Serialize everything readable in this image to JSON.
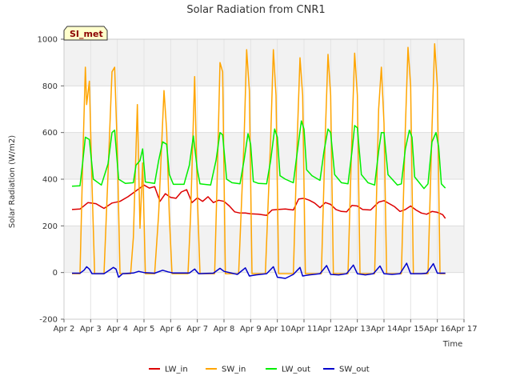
{
  "chart_data": {
    "type": "line",
    "title": "Solar Radiation from CNR1",
    "xlabel": "Time",
    "ylabel": "Solar Radiation (W/m2)",
    "xlim": [
      2,
      17
    ],
    "ylim": [
      -200,
      1000
    ],
    "xticks": [
      {
        "v": 2,
        "label": "Apr 2"
      },
      {
        "v": 3,
        "label": "Apr 3"
      },
      {
        "v": 4,
        "label": "Apr 4"
      },
      {
        "v": 5,
        "label": "Apr 5"
      },
      {
        "v": 6,
        "label": "Apr 6"
      },
      {
        "v": 7,
        "label": "Apr 7"
      },
      {
        "v": 8,
        "label": "Apr 8"
      },
      {
        "v": 9,
        "label": "Apr 9"
      },
      {
        "v": 10,
        "label": "Apr 10"
      },
      {
        "v": 11,
        "label": "Apr 11"
      },
      {
        "v": 12,
        "label": "Apr 12"
      },
      {
        "v": 13,
        "label": "Apr 13"
      },
      {
        "v": 14,
        "label": "Apr 14"
      },
      {
        "v": 15,
        "label": "Apr 15"
      },
      {
        "v": 16,
        "label": "Apr 16"
      },
      {
        "v": 17,
        "label": "Apr 17"
      }
    ],
    "yticks": [
      {
        "v": -200,
        "label": "-200"
      },
      {
        "v": 0,
        "label": "0"
      },
      {
        "v": 200,
        "label": "200"
      },
      {
        "v": 400,
        "label": "400"
      },
      {
        "v": 600,
        "label": "600"
      },
      {
        "v": 800,
        "label": "800"
      },
      {
        "v": 1000,
        "label": "1000"
      }
    ],
    "x_unit": "day of April",
    "badge": "SI_met",
    "grid": true,
    "legend_position": "bottom",
    "series": [
      {
        "name": "LW_in",
        "color": "#dd0000",
        "points": [
          [
            2.3,
            270
          ],
          [
            2.6,
            272
          ],
          [
            2.9,
            300
          ],
          [
            3.2,
            295
          ],
          [
            3.5,
            275
          ],
          [
            3.8,
            298
          ],
          [
            4.1,
            305
          ],
          [
            4.4,
            325
          ],
          [
            4.7,
            350
          ],
          [
            5.0,
            375
          ],
          [
            5.2,
            362
          ],
          [
            5.4,
            368
          ],
          [
            5.6,
            305
          ],
          [
            5.8,
            338
          ],
          [
            6.0,
            322
          ],
          [
            6.2,
            318
          ],
          [
            6.4,
            345
          ],
          [
            6.6,
            355
          ],
          [
            6.8,
            300
          ],
          [
            7.0,
            320
          ],
          [
            7.2,
            305
          ],
          [
            7.4,
            325
          ],
          [
            7.6,
            300
          ],
          [
            7.8,
            310
          ],
          [
            8.0,
            305
          ],
          [
            8.2,
            285
          ],
          [
            8.4,
            260
          ],
          [
            8.6,
            255
          ],
          [
            8.8,
            255
          ],
          [
            9.0,
            252
          ],
          [
            9.3,
            250
          ],
          [
            9.6,
            245
          ],
          [
            9.8,
            268
          ],
          [
            10.0,
            270
          ],
          [
            10.3,
            272
          ],
          [
            10.6,
            268
          ],
          [
            10.8,
            315
          ],
          [
            11.0,
            318
          ],
          [
            11.2,
            310
          ],
          [
            11.4,
            298
          ],
          [
            11.6,
            278
          ],
          [
            11.8,
            300
          ],
          [
            12.0,
            292
          ],
          [
            12.2,
            270
          ],
          [
            12.4,
            262
          ],
          [
            12.6,
            260
          ],
          [
            12.8,
            288
          ],
          [
            13.0,
            285
          ],
          [
            13.2,
            270
          ],
          [
            13.5,
            268
          ],
          [
            13.8,
            302
          ],
          [
            14.0,
            308
          ],
          [
            14.2,
            295
          ],
          [
            14.4,
            282
          ],
          [
            14.6,
            262
          ],
          [
            14.8,
            270
          ],
          [
            15.0,
            285
          ],
          [
            15.2,
            268
          ],
          [
            15.4,
            255
          ],
          [
            15.6,
            250
          ],
          [
            15.8,
            262
          ],
          [
            16.0,
            258
          ],
          [
            16.2,
            248
          ],
          [
            16.3,
            232
          ]
        ]
      },
      {
        "name": "SW_in",
        "color": "#ffa500",
        "points": [
          [
            2.3,
            -5
          ],
          [
            2.6,
            -5
          ],
          [
            2.7,
            460
          ],
          [
            2.8,
            880
          ],
          [
            2.85,
            720
          ],
          [
            2.95,
            820
          ],
          [
            3.05,
            380
          ],
          [
            3.15,
            -5
          ],
          [
            3.5,
            -5
          ],
          [
            3.65,
            420
          ],
          [
            3.8,
            860
          ],
          [
            3.9,
            880
          ],
          [
            4.0,
            520
          ],
          [
            4.1,
            -5
          ],
          [
            4.5,
            -5
          ],
          [
            4.6,
            150
          ],
          [
            4.75,
            720
          ],
          [
            4.85,
            190
          ],
          [
            4.95,
            470
          ],
          [
            5.05,
            -5
          ],
          [
            5.4,
            -5
          ],
          [
            5.55,
            250
          ],
          [
            5.75,
            780
          ],
          [
            5.85,
            610
          ],
          [
            5.95,
            240
          ],
          [
            6.05,
            -5
          ],
          [
            6.65,
            -5
          ],
          [
            6.75,
            250
          ],
          [
            6.9,
            840
          ],
          [
            7.0,
            330
          ],
          [
            7.1,
            -5
          ],
          [
            7.65,
            -5
          ],
          [
            7.75,
            430
          ],
          [
            7.85,
            900
          ],
          [
            7.95,
            860
          ],
          [
            8.05,
            -5
          ],
          [
            8.55,
            -5
          ],
          [
            8.75,
            560
          ],
          [
            8.85,
            955
          ],
          [
            8.95,
            780
          ],
          [
            9.05,
            -5
          ],
          [
            9.55,
            -5
          ],
          [
            9.75,
            570
          ],
          [
            9.85,
            955
          ],
          [
            9.95,
            760
          ],
          [
            10.05,
            -5
          ],
          [
            10.6,
            -5
          ],
          [
            10.75,
            590
          ],
          [
            10.85,
            920
          ],
          [
            10.95,
            760
          ],
          [
            11.05,
            -5
          ],
          [
            11.65,
            -5
          ],
          [
            11.8,
            600
          ],
          [
            11.9,
            935
          ],
          [
            12.0,
            760
          ],
          [
            12.1,
            -5
          ],
          [
            12.65,
            -5
          ],
          [
            12.8,
            600
          ],
          [
            12.9,
            940
          ],
          [
            13.0,
            760
          ],
          [
            13.1,
            -5
          ],
          [
            13.65,
            -5
          ],
          [
            13.8,
            700
          ],
          [
            13.9,
            880
          ],
          [
            14.0,
            640
          ],
          [
            14.1,
            -5
          ],
          [
            14.65,
            -5
          ],
          [
            14.8,
            620
          ],
          [
            14.9,
            965
          ],
          [
            15.0,
            800
          ],
          [
            15.1,
            -5
          ],
          [
            15.65,
            -5
          ],
          [
            15.8,
            620
          ],
          [
            15.9,
            980
          ],
          [
            16.0,
            800
          ],
          [
            16.1,
            -5
          ],
          [
            16.3,
            -5
          ]
        ]
      },
      {
        "name": "LW_out",
        "color": "#00ee00",
        "points": [
          [
            2.3,
            370
          ],
          [
            2.6,
            372
          ],
          [
            2.7,
            470
          ],
          [
            2.8,
            580
          ],
          [
            2.95,
            570
          ],
          [
            3.1,
            400
          ],
          [
            3.4,
            375
          ],
          [
            3.65,
            465
          ],
          [
            3.8,
            600
          ],
          [
            3.9,
            610
          ],
          [
            4.05,
            400
          ],
          [
            4.3,
            382
          ],
          [
            4.6,
            385
          ],
          [
            4.7,
            460
          ],
          [
            4.85,
            480
          ],
          [
            4.95,
            530
          ],
          [
            5.05,
            388
          ],
          [
            5.4,
            382
          ],
          [
            5.55,
            480
          ],
          [
            5.7,
            560
          ],
          [
            5.85,
            550
          ],
          [
            5.95,
            420
          ],
          [
            6.1,
            378
          ],
          [
            6.5,
            378
          ],
          [
            6.7,
            460
          ],
          [
            6.85,
            585
          ],
          [
            7.0,
            440
          ],
          [
            7.1,
            380
          ],
          [
            7.5,
            375
          ],
          [
            7.7,
            480
          ],
          [
            7.85,
            600
          ],
          [
            7.95,
            590
          ],
          [
            8.1,
            400
          ],
          [
            8.3,
            385
          ],
          [
            8.6,
            380
          ],
          [
            8.75,
            480
          ],
          [
            8.9,
            595
          ],
          [
            9.0,
            550
          ],
          [
            9.1,
            390
          ],
          [
            9.3,
            382
          ],
          [
            9.6,
            380
          ],
          [
            9.75,
            480
          ],
          [
            9.9,
            615
          ],
          [
            10.0,
            580
          ],
          [
            10.1,
            415
          ],
          [
            10.3,
            400
          ],
          [
            10.6,
            385
          ],
          [
            10.75,
            520
          ],
          [
            10.9,
            650
          ],
          [
            11.0,
            615
          ],
          [
            11.1,
            440
          ],
          [
            11.3,
            415
          ],
          [
            11.6,
            395
          ],
          [
            11.75,
            520
          ],
          [
            11.9,
            615
          ],
          [
            12.0,
            600
          ],
          [
            12.15,
            420
          ],
          [
            12.4,
            385
          ],
          [
            12.65,
            380
          ],
          [
            12.8,
            520
          ],
          [
            12.9,
            630
          ],
          [
            13.0,
            620
          ],
          [
            13.15,
            420
          ],
          [
            13.4,
            385
          ],
          [
            13.65,
            375
          ],
          [
            13.8,
            520
          ],
          [
            13.9,
            600
          ],
          [
            14.0,
            600
          ],
          [
            14.15,
            420
          ],
          [
            14.5,
            375
          ],
          [
            14.65,
            380
          ],
          [
            14.8,
            530
          ],
          [
            14.95,
            610
          ],
          [
            15.05,
            580
          ],
          [
            15.15,
            410
          ],
          [
            15.5,
            360
          ],
          [
            15.65,
            380
          ],
          [
            15.8,
            560
          ],
          [
            15.95,
            600
          ],
          [
            16.05,
            540
          ],
          [
            16.15,
            380
          ],
          [
            16.3,
            362
          ]
        ]
      },
      {
        "name": "SW_out",
        "color": "#0000cc",
        "points": [
          [
            2.3,
            -3
          ],
          [
            2.6,
            -3
          ],
          [
            2.75,
            10
          ],
          [
            2.85,
            25
          ],
          [
            2.95,
            15
          ],
          [
            3.05,
            -5
          ],
          [
            3.5,
            -5
          ],
          [
            3.7,
            10
          ],
          [
            3.85,
            22
          ],
          [
            3.95,
            15
          ],
          [
            4.05,
            -20
          ],
          [
            4.2,
            -5
          ],
          [
            4.6,
            -2
          ],
          [
            4.8,
            5
          ],
          [
            5.0,
            0
          ],
          [
            5.4,
            -3
          ],
          [
            5.7,
            10
          ],
          [
            5.9,
            3
          ],
          [
            6.1,
            -2
          ],
          [
            6.7,
            -2
          ],
          [
            6.9,
            15
          ],
          [
            7.05,
            -5
          ],
          [
            7.6,
            -3
          ],
          [
            7.85,
            18
          ],
          [
            8.0,
            5
          ],
          [
            8.5,
            -8
          ],
          [
            8.8,
            20
          ],
          [
            8.95,
            -15
          ],
          [
            9.2,
            -10
          ],
          [
            9.6,
            -5
          ],
          [
            9.85,
            25
          ],
          [
            10.0,
            -20
          ],
          [
            10.3,
            -25
          ],
          [
            10.6,
            -8
          ],
          [
            10.85,
            22
          ],
          [
            10.95,
            -15
          ],
          [
            11.2,
            -10
          ],
          [
            11.6,
            -5
          ],
          [
            11.85,
            30
          ],
          [
            12.0,
            -8
          ],
          [
            12.3,
            -10
          ],
          [
            12.6,
            -5
          ],
          [
            12.85,
            32
          ],
          [
            13.0,
            -5
          ],
          [
            13.3,
            -10
          ],
          [
            13.6,
            -5
          ],
          [
            13.85,
            28
          ],
          [
            14.0,
            -5
          ],
          [
            14.3,
            -8
          ],
          [
            14.6,
            -5
          ],
          [
            14.85,
            40
          ],
          [
            15.0,
            -5
          ],
          [
            15.4,
            -5
          ],
          [
            15.6,
            -3
          ],
          [
            15.85,
            38
          ],
          [
            16.0,
            -3
          ],
          [
            16.3,
            -3
          ]
        ]
      }
    ]
  }
}
